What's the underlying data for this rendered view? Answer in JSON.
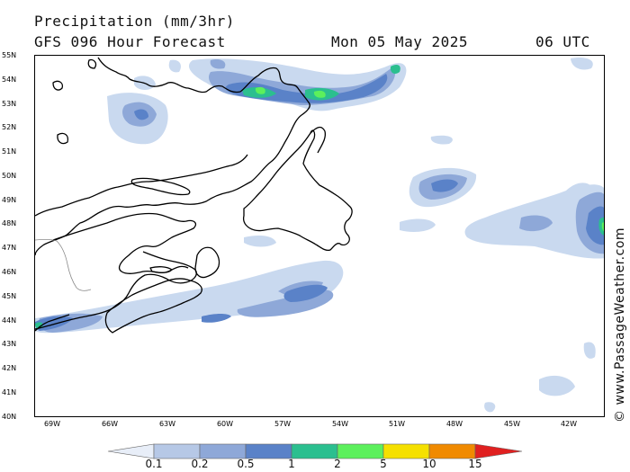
{
  "header": {
    "title": "Precipitation (mm/3hr)",
    "subtitle": "GFS 096 Hour Forecast",
    "date": "Mon 05 May 2025",
    "time": "06 UTC"
  },
  "credit": "© www.PassageWeather.com",
  "axes": {
    "lat_labels": [
      "55N",
      "54N",
      "53N",
      "52N",
      "51N",
      "50N",
      "49N",
      "48N",
      "47N",
      "46N",
      "45N",
      "44N",
      "43N",
      "42N",
      "41N",
      "40N"
    ],
    "lon_labels": [
      "69W",
      "66W",
      "63W",
      "60W",
      "57W",
      "54W",
      "51W",
      "48W",
      "45W",
      "42W"
    ]
  },
  "legend": {
    "values": [
      "0.1",
      "0.2",
      "0.5",
      "1",
      "2",
      "5",
      "10",
      "15"
    ],
    "colors": [
      "#e8eef8",
      "#b6c8e6",
      "#8ea8d8",
      "#5a82c8",
      "#2bbf8f",
      "#5cf05c",
      "#f5e000",
      "#f08a00",
      "#e02020"
    ]
  },
  "colors": {
    "light_blue": "#c9d9ef",
    "mid_blue": "#8ea8d8",
    "blue": "#5a82c8",
    "teal": "#2bbf8f",
    "green": "#5cf05c"
  }
}
